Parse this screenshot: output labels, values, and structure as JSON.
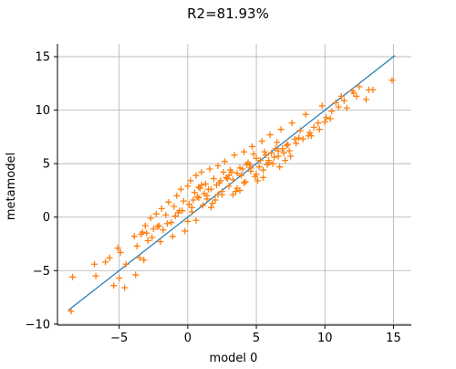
{
  "chart_data": {
    "type": "scatter",
    "title": "R2=81.93%",
    "xlabel": "model 0",
    "ylabel": "metamodel",
    "xlim": [
      -9.5,
      16.3
    ],
    "ylim": [
      -10.1,
      16.2
    ],
    "xticks": [
      -5,
      0,
      5,
      10,
      15
    ],
    "yticks": [
      -10,
      -5,
      0,
      5,
      10,
      15
    ],
    "grid": true,
    "colors": {
      "points": "#ff7f0e",
      "diagonal": "#1f77b4",
      "grid": "#b0b0b0"
    },
    "marker": "plus",
    "diagonal": {
      "x": [
        -8.7,
        15.1
      ],
      "y": [
        -8.7,
        15.1
      ]
    },
    "points_x": [
      -8.5,
      -8.4,
      -6.8,
      -6.7,
      -6.0,
      -5.7,
      -5.4,
      -5.1,
      -5.0,
      -4.9,
      -4.6,
      -4.5,
      -3.9,
      -3.8,
      -3.7,
      -3.5,
      -3.4,
      -3.2,
      -3.1,
      -3.0,
      -2.9,
      -2.7,
      -2.5,
      -2.3,
      -2.2,
      -2.0,
      -1.9,
      -1.8,
      -1.6,
      -1.4,
      -1.2,
      -1.0,
      -0.8,
      -0.6,
      -0.5,
      -0.3,
      -0.2,
      0.0,
      0.1,
      0.2,
      0.3,
      0.5,
      0.6,
      0.8,
      0.9,
      1.0,
      1.1,
      1.3,
      1.4,
      1.6,
      1.7,
      1.9,
      2.0,
      2.2,
      2.3,
      2.5,
      2.7,
      2.8,
      3.0,
      3.1,
      3.3,
      3.4,
      3.6,
      3.8,
      3.9,
      4.1,
      4.2,
      4.4,
      4.6,
      4.7,
      4.9,
      5.0,
      5.2,
      5.4,
      5.5,
      5.7,
      5.9,
      6.0,
      6.2,
      6.4,
      6.6,
      6.8,
      7.0,
      7.2,
      7.4,
      7.6,
      7.9,
      8.1,
      8.4,
      8.6,
      8.9,
      9.2,
      9.5,
      9.8,
      10.1,
      10.5,
      10.8,
      11.2,
      11.6,
      12.0,
      12.5,
      13.0,
      13.5,
      14.9,
      -0.4,
      0.4,
      1.2,
      2.1,
      2.9,
      3.6,
      4.5,
      5.3,
      6.1,
      6.9,
      -1.1,
      -0.7,
      0.7,
      1.5,
      2.4,
      3.2,
      4.0,
      4.8,
      5.6,
      6.5,
      7.3,
      8.2,
      -2.6,
      -1.5,
      0.3,
      1.0,
      1.8,
      2.6,
      3.5,
      4.3,
      5.1,
      5.9,
      6.7,
      7.5,
      8.8,
      9.6,
      10.4,
      11.4,
      12.3,
      13.2,
      -3.3,
      -2.1,
      -0.9,
      0.6,
      1.4,
      2.2,
      3.0,
      3.8,
      4.6,
      5.5,
      6.3,
      7.1,
      0.0,
      0.8,
      1.7,
      2.5,
      3.3,
      4.1,
      5.0,
      5.8,
      6.6,
      7.8,
      9.0,
      10.0,
      11.0,
      12.1
    ],
    "points_y": [
      -8.8,
      -5.6,
      -4.4,
      -5.5,
      -4.2,
      -3.8,
      -6.4,
      -2.9,
      -5.7,
      -3.3,
      -6.6,
      -4.4,
      -1.8,
      -5.4,
      -2.7,
      -3.8,
      -1.6,
      -4.0,
      -0.8,
      -1.5,
      -2.2,
      -0.1,
      -1.1,
      0.3,
      -0.9,
      -2.3,
      0.8,
      -1.2,
      0.2,
      1.4,
      -0.5,
      1.0,
      2.0,
      0.6,
      2.6,
      1.5,
      -1.3,
      2.9,
      1.2,
      3.4,
      0.5,
      2.3,
      3.9,
      1.8,
      2.7,
      4.2,
      1.1,
      3.1,
      2.0,
      4.5,
      2.6,
      3.6,
      1.6,
      4.8,
      3.2,
      2.4,
      5.2,
      3.7,
      2.9,
      4.4,
      3.5,
      5.8,
      2.7,
      4.6,
      3.9,
      6.1,
      3.3,
      5.1,
      4.3,
      6.6,
      3.8,
      5.5,
      4.7,
      7.1,
      4.4,
      5.8,
      5.1,
      7.7,
      5.0,
      6.4,
      5.7,
      8.2,
      6.0,
      6.7,
      6.2,
      8.8,
      6.9,
      7.4,
      7.3,
      9.6,
      7.9,
      8.4,
      8.8,
      10.4,
      9.3,
      9.9,
      10.7,
      11.3,
      10.2,
      11.8,
      12.2,
      11.0,
      11.9,
      12.8,
      0.6,
      1.6,
      2.2,
      3.0,
      3.6,
      4.1,
      4.9,
      5.3,
      6.0,
      6.4,
      -1.8,
      0.4,
      1.9,
      2.6,
      3.4,
      4.2,
      4.5,
      5.9,
      6.1,
      7.0,
      6.8,
      8.1,
      -1.9,
      -0.6,
      0.9,
      3.0,
      1.3,
      4.2,
      2.4,
      4.9,
      3.4,
      5.3,
      4.7,
      5.7,
      7.6,
      8.2,
      9.2,
      10.9,
      11.3,
      11.9,
      -1.4,
      -0.8,
      0.1,
      -0.3,
      1.7,
      2.1,
      3.9,
      2.5,
      4.6,
      3.7,
      5.6,
      5.3,
      -0.4,
      2.8,
      0.9,
      2.1,
      2.1,
      3.2,
      4.0,
      4.9,
      6.2,
      7.3,
      7.6,
      8.9,
      10.3,
      11.6
    ]
  }
}
